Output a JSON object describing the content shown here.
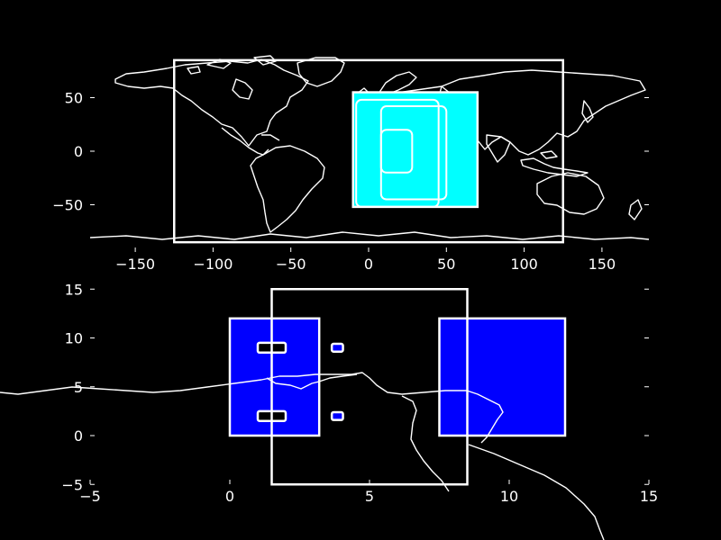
{
  "colors": {
    "background": "#000000",
    "foreground": "#ffffff",
    "fill_blue": "#0000ff",
    "fill_cyan": "#00ffff"
  },
  "chart_data": [
    {
      "type": "map",
      "title": "",
      "xlim": [
        -180,
        180
      ],
      "ylim": [
        -90,
        90
      ],
      "x_ticks": [
        -150,
        -100,
        -50,
        0,
        50,
        100,
        150
      ],
      "x_tick_labels": [
        "−150",
        "−100",
        "−50",
        "0",
        "50",
        "100",
        "150"
      ],
      "y_ticks": [
        50,
        0,
        -50
      ],
      "y_tick_labels": [
        "50",
        "0",
        "−50"
      ],
      "frame": {
        "x": [
          -125,
          125
        ],
        "y": [
          -85,
          85
        ]
      },
      "shapes": [
        {
          "name": "cyan-patch",
          "color": "#00ffff",
          "x": [
            -10,
            70
          ],
          "y": [
            -52,
            55
          ]
        },
        {
          "name": "outline-1",
          "color": "#ffffff",
          "x": [
            -8,
            45
          ],
          "y": [
            -52,
            48
          ]
        },
        {
          "name": "outline-2",
          "color": "#ffffff",
          "x": [
            8,
            50
          ],
          "y": [
            -45,
            42
          ]
        },
        {
          "name": "inner-box",
          "color": "#ffffff",
          "x": [
            8,
            28
          ],
          "y": [
            -20,
            20
          ]
        }
      ]
    },
    {
      "type": "map",
      "title": "",
      "xlim": [
        -5,
        15
      ],
      "ylim": [
        -5,
        15
      ],
      "x_ticks": [
        -5,
        0,
        5,
        10,
        15
      ],
      "x_tick_labels": [
        "−5",
        "0",
        "5",
        "10",
        "15"
      ],
      "y_ticks": [
        15,
        10,
        5,
        0,
        -5
      ],
      "y_tick_labels": [
        "15",
        "10",
        "5",
        "0",
        "−5"
      ],
      "frame": {
        "x": [
          1.5,
          8.5
        ],
        "y": [
          -5,
          15
        ]
      },
      "shapes": [
        {
          "name": "blue-rect-left",
          "color": "#0000ff",
          "x": [
            0,
            3.2
          ],
          "y": [
            0,
            12
          ]
        },
        {
          "name": "blue-rect-right",
          "color": "#0000ff",
          "x": [
            7.5,
            12
          ],
          "y": [
            0,
            12
          ]
        },
        {
          "name": "black-marker-upper",
          "color": "#000000",
          "x": [
            1,
            2
          ],
          "y": [
            8.5,
            9.5
          ]
        },
        {
          "name": "black-marker-lower",
          "color": "#000000",
          "x": [
            1,
            2
          ],
          "y": [
            1.5,
            2.5
          ]
        },
        {
          "name": "blue-marker-upper",
          "color": "#0000ff",
          "x": [
            3.65,
            4.05
          ],
          "y": [
            8.6,
            9.4
          ]
        },
        {
          "name": "blue-marker-lower",
          "color": "#0000ff",
          "x": [
            3.65,
            4.05
          ],
          "y": [
            1.6,
            2.4
          ]
        }
      ]
    }
  ]
}
